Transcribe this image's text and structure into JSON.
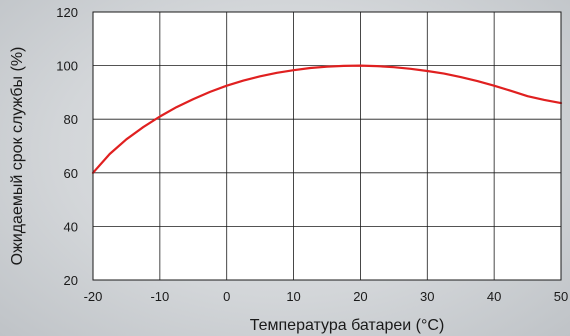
{
  "chart_data": {
    "type": "line",
    "title": "",
    "xlabel": "Температура батареи (°C)",
    "ylabel": "Ожидаемый срок службы (%)",
    "xlim": [
      -20,
      50
    ],
    "ylim": [
      20,
      120
    ],
    "x_ticks": [
      "-20",
      "-10",
      "0",
      "10",
      "20",
      "30",
      "40",
      "50"
    ],
    "y_ticks": [
      "20",
      "40",
      "60",
      "80",
      "100",
      "120"
    ],
    "grid": true,
    "colors": {
      "line": "#e02020",
      "grid": "#1a1a1a",
      "plot_bg": "#ffffff"
    },
    "series": [
      {
        "x": [
          -20,
          -17.5,
          -15,
          -12.5,
          -10,
          -7.5,
          -5,
          -2.5,
          0,
          2.5,
          5,
          7.5,
          10,
          12.5,
          15,
          17.5,
          20,
          22.5,
          25,
          27.5,
          30,
          32.5,
          35,
          37.5,
          40,
          42.5,
          45,
          47.5,
          50
        ],
        "y": [
          60,
          67,
          72.5,
          77,
          81,
          84.5,
          87.5,
          90.2,
          92.5,
          94.4,
          96,
          97.3,
          98.3,
          99.1,
          99.6,
          99.9,
          100,
          99.8,
          99.4,
          98.8,
          98,
          97,
          95.7,
          94.2,
          92.5,
          90.6,
          88.6,
          87.2,
          86
        ]
      }
    ]
  }
}
